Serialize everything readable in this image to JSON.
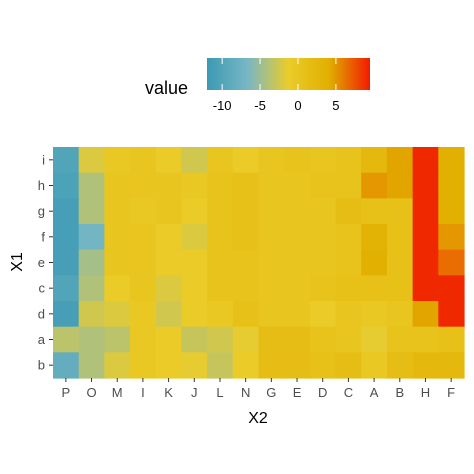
{
  "chart_data": {
    "type": "heatmap",
    "title": "",
    "xlabel": "X2",
    "ylabel": "X1",
    "x_categories": [
      "P",
      "O",
      "M",
      "I",
      "K",
      "J",
      "L",
      "N",
      "G",
      "E",
      "D",
      "C",
      "A",
      "B",
      "H",
      "F"
    ],
    "y_categories": [
      "i",
      "h",
      "g",
      "f",
      "e",
      "c",
      "d",
      "a",
      "b"
    ],
    "values": [
      [
        -10,
        -2,
        -0.5,
        0,
        -1,
        -2.5,
        0,
        -1,
        0,
        0.5,
        0,
        0.5,
        2.5,
        4.5,
        9,
        4
      ],
      [
        -10.5,
        -4,
        0,
        0,
        0,
        -0.5,
        0.5,
        1,
        0,
        0,
        0.5,
        0.5,
        5,
        4.5,
        9,
        4
      ],
      [
        -11,
        -4,
        0,
        -0.5,
        0,
        -1,
        0.5,
        1,
        0,
        0,
        0,
        1.5,
        1,
        1,
        9,
        4
      ],
      [
        -11,
        -7,
        0,
        0,
        -1,
        -2,
        0.5,
        1,
        0,
        0,
        0,
        0.5,
        3.5,
        1,
        9,
        5
      ],
      [
        -11,
        -4.5,
        0,
        0,
        -1,
        -1,
        0.5,
        0.5,
        0,
        0,
        0,
        0.5,
        4,
        1,
        9,
        6.5
      ],
      [
        -10,
        -4,
        -1,
        0,
        -2,
        -1,
        0.5,
        0.5,
        0,
        0,
        0.5,
        1,
        1,
        1,
        9,
        9
      ],
      [
        -11,
        -2.5,
        -2,
        -0.5,
        -2.5,
        -1,
        -0.5,
        1,
        0,
        0,
        -1,
        0,
        -0.5,
        0,
        4.5,
        9
      ],
      [
        -3.5,
        -4,
        -3.5,
        -0.5,
        -1,
        -3,
        -2.5,
        -1.5,
        1.5,
        1.5,
        0.5,
        0,
        -1.5,
        0.5,
        0.5,
        1
      ],
      [
        -8.5,
        -4,
        -2,
        -0.5,
        -1,
        -1.5,
        -3,
        -1,
        1.5,
        1.5,
        1,
        1.5,
        -0.5,
        1.5,
        2.5,
        2.5
      ]
    ],
    "legend": {
      "title": "value",
      "position": "top",
      "range": [
        -12,
        9.5
      ],
      "ticks": [
        -10,
        -5,
        0,
        5
      ],
      "tick_labels": [
        "-10",
        "-5",
        "0",
        "5"
      ],
      "colors": [
        "#3B9AB2",
        "#78B7C5",
        "#EBCC2A",
        "#E1AF00",
        "#F21A00"
      ]
    },
    "grid": false
  }
}
